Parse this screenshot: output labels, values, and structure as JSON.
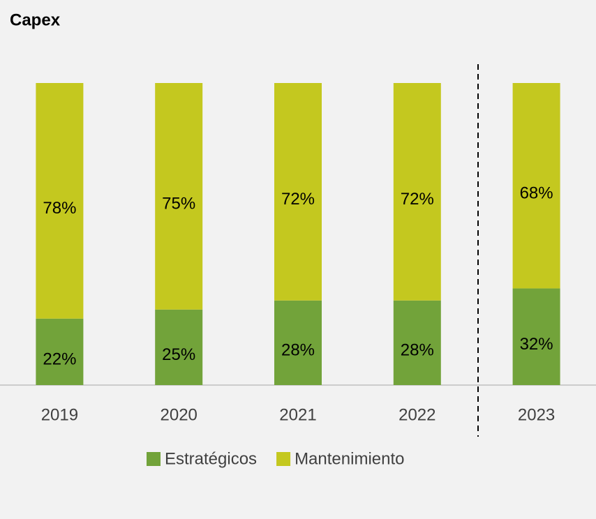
{
  "chart_data": {
    "type": "stacked_bar",
    "title": "Capex",
    "categories": [
      "2019",
      "2020",
      "2021",
      "2022",
      "2023"
    ],
    "series": [
      {
        "name": "Estratégicos",
        "color": "#72a33a",
        "values": [
          22,
          25,
          28,
          28,
          32
        ],
        "value_labels": [
          "22%",
          "25%",
          "28%",
          "28%",
          "32%"
        ]
      },
      {
        "name": "Mantenimiento",
        "color": "#c4c81f",
        "values": [
          78,
          75,
          72,
          72,
          68
        ],
        "value_labels": [
          "78%",
          "75%",
          "72%",
          "72%",
          "68%"
        ]
      }
    ],
    "ylim": [
      0,
      100
    ],
    "legend": "bottom"
  }
}
